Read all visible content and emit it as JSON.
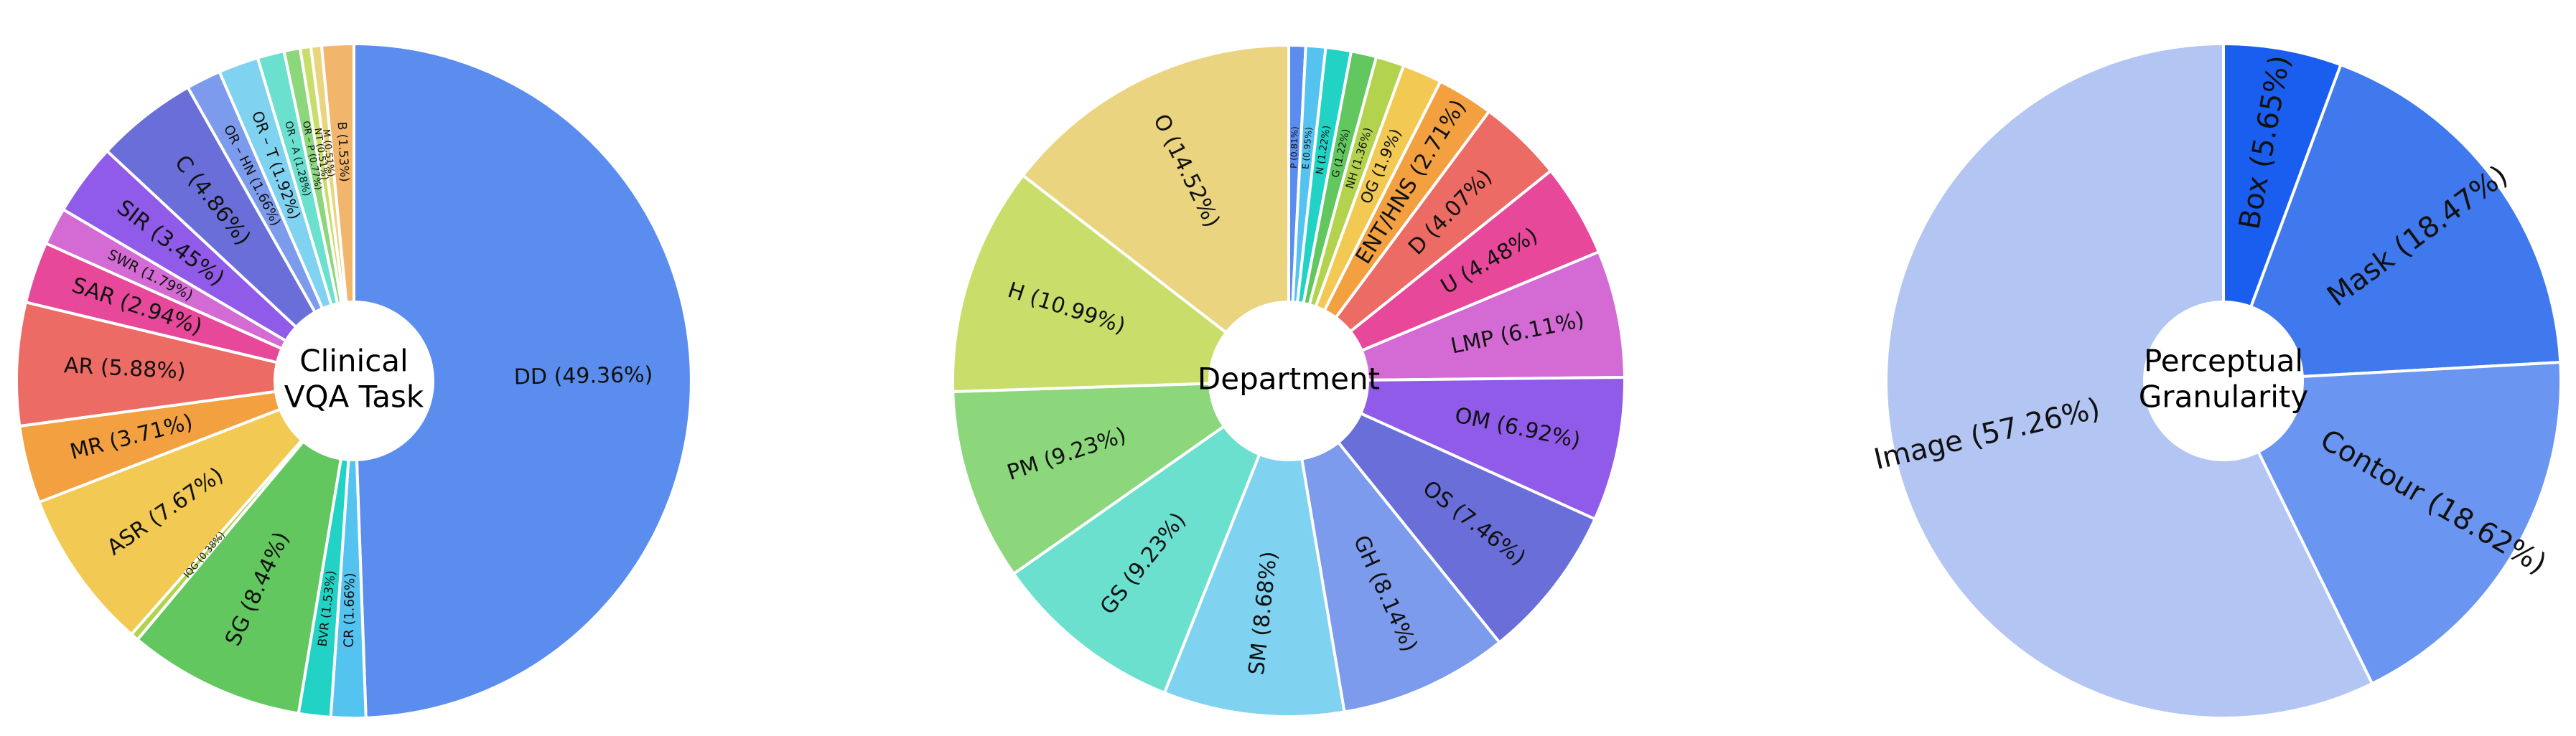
{
  "chart_data": [
    {
      "type": "pie",
      "donut": true,
      "center_lines": [
        "Clinical",
        "VQA Task"
      ],
      "slices": [
        {
          "label": "DD",
          "value": 49.36,
          "color": "#5b8def"
        },
        {
          "label": "CR",
          "value": 1.66,
          "color": "#55c3ef"
        },
        {
          "label": "BVR",
          "value": 1.53,
          "color": "#22d3c5"
        },
        {
          "label": "SG",
          "value": 8.44,
          "color": "#62c75f"
        },
        {
          "label": "IQG",
          "value": 0.38,
          "color": "#b3d24e"
        },
        {
          "label": "ASR",
          "value": 7.67,
          "color": "#f1c953"
        },
        {
          "label": "MR",
          "value": 3.71,
          "color": "#f3a041"
        },
        {
          "label": "AR",
          "value": 5.88,
          "color": "#ec6b64"
        },
        {
          "label": "SAR",
          "value": 2.94,
          "color": "#e8489a"
        },
        {
          "label": "SWR",
          "value": 1.79,
          "color": "#d46ad4"
        },
        {
          "label": "SIR",
          "value": 3.45,
          "color": "#8f5be8"
        },
        {
          "label": "C",
          "value": 4.86,
          "color": "#6a6ed8"
        },
        {
          "label": "OR – HN",
          "value": 1.66,
          "color": "#7c9bec"
        },
        {
          "label": "OR – T",
          "value": 1.92,
          "color": "#7fd2f0"
        },
        {
          "label": "OR – A",
          "value": 1.28,
          "color": "#6be0cf"
        },
        {
          "label": "OR – P",
          "value": 0.77,
          "color": "#8cd67c"
        },
        {
          "label": "NT",
          "value": 0.51,
          "color": "#c9de6a"
        },
        {
          "label": "M",
          "value": 0.51,
          "color": "#ead47f"
        },
        {
          "label": "B",
          "value": 1.53,
          "color": "#f2b56c"
        }
      ]
    },
    {
      "type": "pie",
      "donut": true,
      "center_lines": [
        "Department"
      ],
      "slices": [
        {
          "label": "P",
          "value": 0.81,
          "color": "#5b8def"
        },
        {
          "label": "E",
          "value": 0.95,
          "color": "#55c3ef"
        },
        {
          "label": "N",
          "value": 1.22,
          "color": "#22d3c5"
        },
        {
          "label": "G",
          "value": 1.22,
          "color": "#62c75f"
        },
        {
          "label": "NH",
          "value": 1.36,
          "color": "#b3d24e"
        },
        {
          "label": "OG",
          "value": 1.9,
          "color": "#f1c953"
        },
        {
          "label": "ENT/HNS",
          "value": 2.71,
          "color": "#f3a041"
        },
        {
          "label": "D",
          "value": 4.07,
          "color": "#ec6b64"
        },
        {
          "label": "U",
          "value": 4.48,
          "color": "#e8489a"
        },
        {
          "label": "LMP",
          "value": 6.11,
          "color": "#d46ad4"
        },
        {
          "label": "OM",
          "value": 6.92,
          "color": "#8f5be8"
        },
        {
          "label": "OS",
          "value": 7.46,
          "color": "#6a6ed8"
        },
        {
          "label": "GH",
          "value": 8.14,
          "color": "#7c9bec"
        },
        {
          "label": "SM",
          "value": 8.68,
          "color": "#7fd2f0"
        },
        {
          "label": "GS",
          "value": 9.23,
          "color": "#6be0cf"
        },
        {
          "label": "PM",
          "value": 9.23,
          "color": "#8cd67c"
        },
        {
          "label": "H",
          "value": 10.99,
          "color": "#c9de6a"
        },
        {
          "label": "O",
          "value": 14.52,
          "color": "#ead47f"
        }
      ]
    },
    {
      "type": "pie",
      "donut": true,
      "center_lines": [
        "Perceptual",
        "Granularity"
      ],
      "slices": [
        {
          "label": "Box",
          "value": 5.65,
          "color": "#1a5ef0"
        },
        {
          "label": "Mask",
          "value": 18.47,
          "color": "#4078ee"
        },
        {
          "label": "Contour",
          "value": 18.62,
          "color": "#6a95f0"
        },
        {
          "label": "Image",
          "value": 57.26,
          "color": "#b3c5f2"
        }
      ]
    }
  ]
}
